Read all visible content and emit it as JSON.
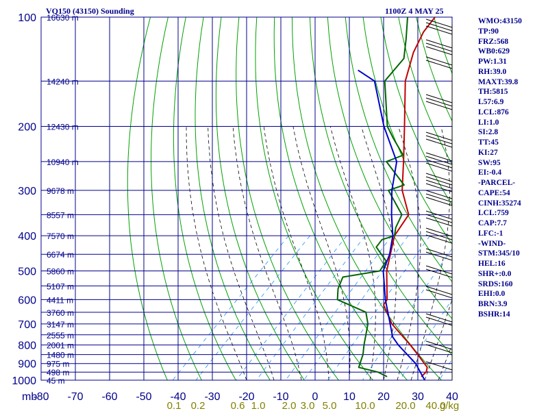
{
  "header": {
    "station": "VQ150 (43150) Sounding",
    "time": "1100Z  4 MAY 25"
  },
  "indices": [
    "WMO:43150",
    "TP:90",
    "FRZ:568",
    "WB0:629",
    "PW:1.31",
    "RH:39.0",
    "MAXT:39.8",
    "TH:5815",
    "L57:6.9",
    "LCL:876",
    "LI:1.0",
    "SI:2.8",
    "TT:45",
    "KI:27",
    "SW:95",
    "EI:-0.4",
    "-PARCEL-",
    "CAPE:54",
    "CINH:35274",
    "LCL:759",
    "CAP:7.7",
    "LFC:-1",
    "-WIND-",
    "STM:345/10",
    "HEL:16",
    "SHR+:0.0",
    "SRDS:160",
    "EHI:0.0",
    "BRN:3.9",
    "BSHR:14"
  ],
  "colors": {
    "grid": "#00008b",
    "isotherm": "#00008b",
    "dry_adiabat": "#00a000",
    "moist_adiabat": "#000000",
    "mixing_ratio": "#1e90ff",
    "temperature": "#c00000",
    "dewpoint": "#006400",
    "parcel": "#0000cd",
    "mixing_label": "#808000"
  },
  "chart_data": {
    "type": "line",
    "title": "VQ150 (43150) Sounding",
    "y_axis": {
      "unit_label": "mb",
      "scale": "log",
      "range": [
        1000,
        100
      ],
      "ticks": [
        100,
        200,
        300,
        400,
        500,
        600,
        700,
        800,
        900,
        1000
      ]
    },
    "x_axis": {
      "range": [
        -80,
        40
      ],
      "ticks": [
        -80,
        -70,
        -60,
        -50,
        -40,
        -30,
        -20,
        -10,
        0,
        10,
        20,
        30,
        40
      ]
    },
    "height_labels": [
      {
        "p": 100,
        "label": "16630 m"
      },
      {
        "p": 150,
        "label": "14240 m"
      },
      {
        "p": 200,
        "label": "12430 m"
      },
      {
        "p": 250,
        "label": "10940 m"
      },
      {
        "p": 300,
        "label": "9678 m"
      },
      {
        "p": 350,
        "label": "8557 m"
      },
      {
        "p": 400,
        "label": "7570 m"
      },
      {
        "p": 450,
        "label": "6674 m"
      },
      {
        "p": 500,
        "label": "5860 m"
      },
      {
        "p": 550,
        "label": "5107 m"
      },
      {
        "p": 600,
        "label": "4411 m"
      },
      {
        "p": 650,
        "label": "3760 m"
      },
      {
        "p": 700,
        "label": "3147 m"
      },
      {
        "p": 750,
        "label": "2555 m"
      },
      {
        "p": 800,
        "label": "2001 m"
      },
      {
        "p": 850,
        "label": "1480 m"
      },
      {
        "p": 900,
        "label": "975 m"
      },
      {
        "p": 950,
        "label": "498 m"
      },
      {
        "p": 1000,
        "label": "45 m"
      }
    ],
    "mixing_ratio_labels": [
      "0.1",
      "0.2",
      "0.6",
      "1.0",
      "2.0",
      "3.0",
      "5.0",
      "10.0",
      "20.0",
      "40.0",
      "g/kg"
    ],
    "series": [
      {
        "key": "temperature",
        "points": [
          [
            978,
            30.0
          ],
          [
            948,
            30.0
          ],
          [
            922,
            29.0
          ],
          [
            850,
            22.5
          ],
          [
            800,
            17.5
          ],
          [
            700,
            6.0
          ],
          [
            620,
            -2.0
          ],
          [
            600,
            -2.5
          ],
          [
            500,
            -11.0
          ],
          [
            400,
            -19.0
          ],
          [
            350,
            -21.0
          ],
          [
            300,
            -30.0
          ],
          [
            250,
            -38.0
          ],
          [
            200,
            -48.0
          ],
          [
            150,
            -61.0
          ],
          [
            125,
            -67.0
          ],
          [
            110,
            -70.0
          ],
          [
            100,
            -71.0
          ]
        ]
      },
      {
        "key": "dewpoint",
        "points": [
          [
            978,
            20.0
          ],
          [
            950,
            16.0
          ],
          [
            922,
            9.0
          ],
          [
            850,
            6.5
          ],
          [
            800,
            4.0
          ],
          [
            700,
            -1.0
          ],
          [
            650,
            -5.0
          ],
          [
            600,
            -17.0
          ],
          [
            560,
            -20.0
          ],
          [
            520,
            -22.0
          ],
          [
            500,
            -13.0
          ],
          [
            470,
            -14.0
          ],
          [
            430,
            -21.0
          ],
          [
            410,
            -21.5
          ],
          [
            400,
            -19.0
          ],
          [
            380,
            -21.0
          ],
          [
            350,
            -23.0
          ],
          [
            300,
            -34.0
          ],
          [
            290,
            -31.0
          ],
          [
            250,
            -43.0
          ],
          [
            240,
            -40.0
          ],
          [
            215,
            -48.0
          ],
          [
            200,
            -53.0
          ],
          [
            150,
            -67.0
          ],
          [
            130,
            -68.0
          ],
          [
            115,
            -73.0
          ],
          [
            100,
            -79.0
          ]
        ]
      },
      {
        "key": "parcel",
        "points": [
          [
            1000,
            32.0
          ],
          [
            900,
            24.5
          ],
          [
            800,
            14.0
          ],
          [
            760,
            10.0
          ],
          [
            700,
            5.5
          ],
          [
            600,
            -3.0
          ],
          [
            500,
            -12.0
          ],
          [
            450,
            -15.0
          ],
          [
            400,
            -19.5
          ],
          [
            350,
            -26.0
          ],
          [
            300,
            -33.0
          ],
          [
            250,
            -40.0
          ],
          [
            200,
            -54.0
          ],
          [
            150,
            -70.0
          ],
          [
            140,
            -78.0
          ]
        ]
      }
    ],
    "grid": true,
    "legend": "none"
  }
}
